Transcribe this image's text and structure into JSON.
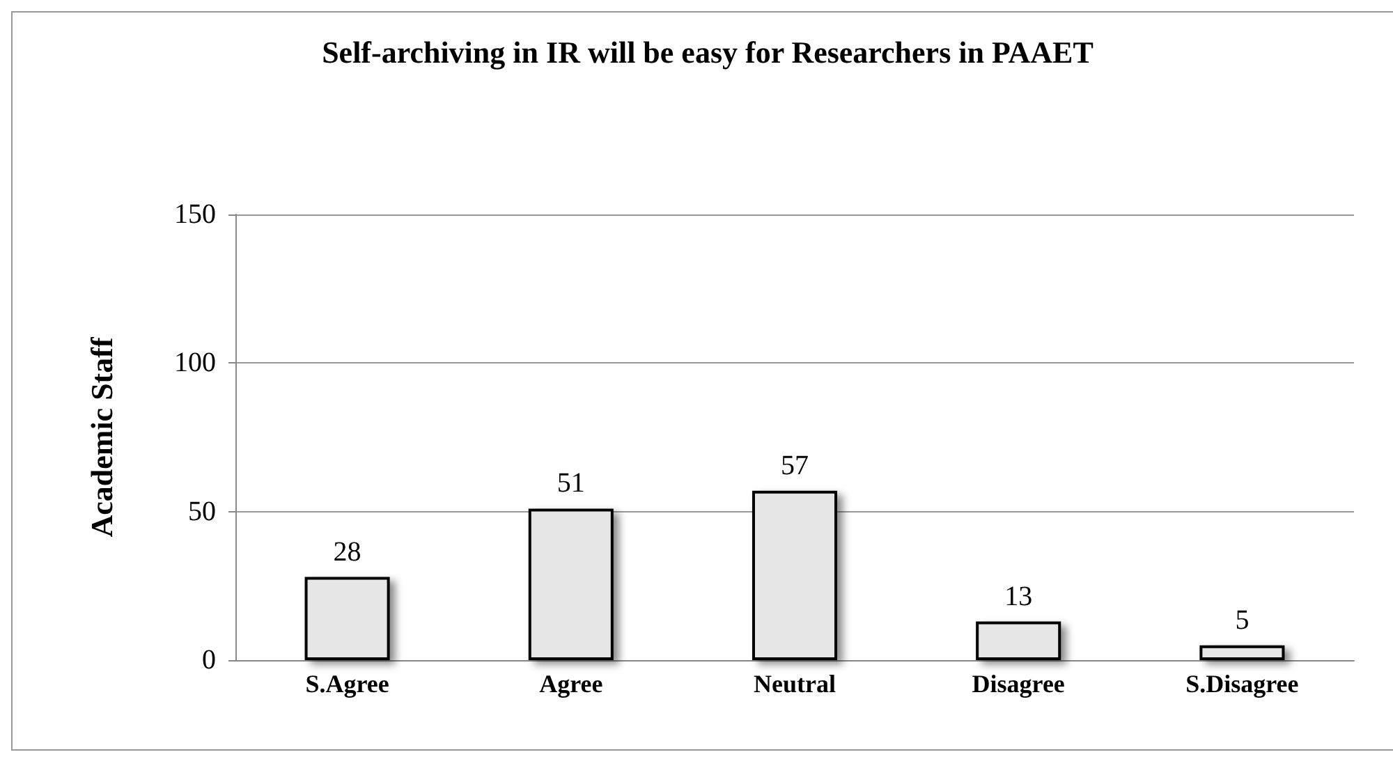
{
  "chart_data": {
    "type": "bar",
    "title": "Self-archiving in IR will be easy for Researchers in PAAET",
    "ylabel": "Academic Staff",
    "categories": [
      "S.Agree",
      "Agree",
      "Neutral",
      "Disagree",
      "S.Disagree"
    ],
    "values": [
      28,
      51,
      57,
      13,
      5
    ],
    "color": "#e6e6e6",
    "ylim": [
      0,
      150
    ],
    "yticks": [
      0,
      50,
      100,
      150
    ],
    "grid": "y",
    "data_labels": true
  }
}
